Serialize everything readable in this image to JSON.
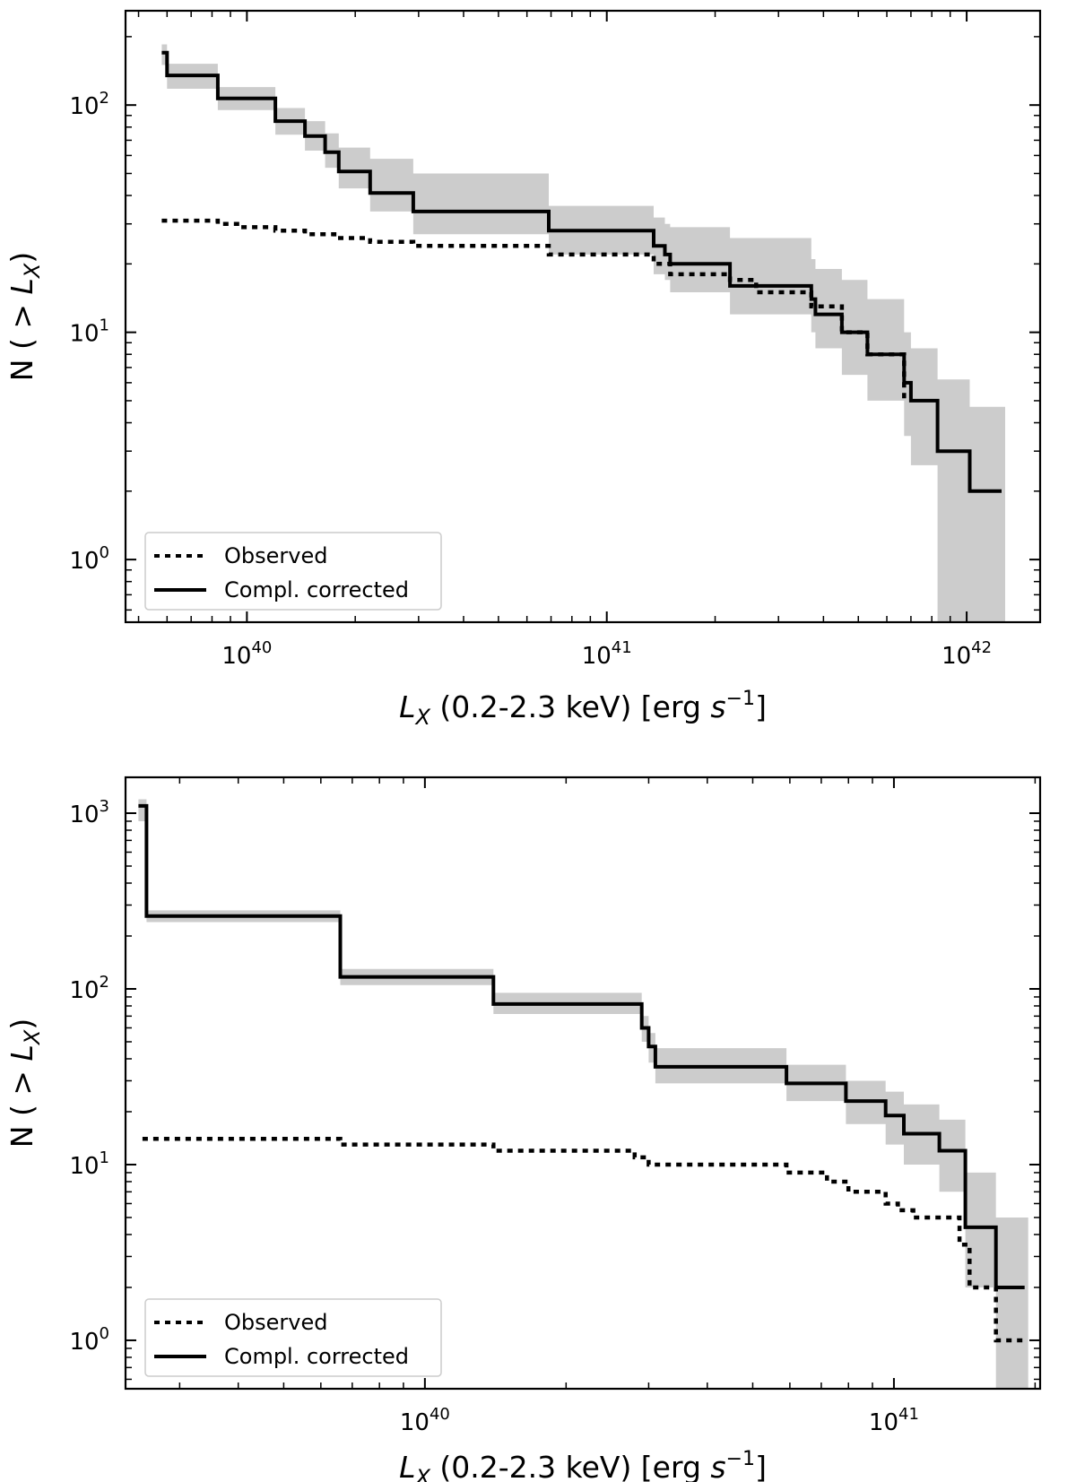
{
  "chart_data": [
    {
      "type": "line",
      "xscale": "log",
      "yscale": "log",
      "xlim": [
        4.6e+39,
        1.6e+42
      ],
      "ylim": [
        0.53,
        260
      ],
      "xlabel": {
        "main": "L",
        "sub": "X",
        "rest": " (0.2-2.3 keV) [erg ",
        "s": "s",
        "sup": "−1",
        "close": "]"
      },
      "ylabel": {
        "main": "N ( > ",
        "L": "L",
        "sub": "X",
        "close": ")"
      },
      "x_tick_labels": [
        {
          "value": 1e+40,
          "base": "10",
          "exp": "40"
        },
        {
          "value": 1e+41,
          "base": "10",
          "exp": "41"
        },
        {
          "value": 1e+42,
          "base": "10",
          "exp": "42"
        }
      ],
      "y_tick_labels": [
        {
          "value": 1,
          "base": "10",
          "exp": "0"
        },
        {
          "value": 10,
          "base": "10",
          "exp": "1"
        },
        {
          "value": 100,
          "base": "10",
          "exp": "2"
        }
      ],
      "legend": {
        "position": "lower-left",
        "entries": [
          "Observed",
          "Compl. corrected"
        ]
      },
      "grid": false,
      "series": [
        {
          "name": "Observed",
          "style": "dotted",
          "x": [
            5.8e+39,
            8.3e+39,
            9.6e+39,
            1.2e+40,
            1.45e+40,
            1.75e+40,
            2.2e+40,
            2.9e+40,
            6.9e+40,
            1.35e+41,
            1.5e+41,
            2.2e+41,
            2.6e+41,
            3.7e+41,
            4.5e+41,
            5.3e+41,
            6.7e+41
          ],
          "y": [
            31,
            30,
            29,
            28,
            27,
            26,
            25,
            24,
            22,
            20,
            18,
            17,
            15,
            13,
            10,
            8,
            5
          ]
        },
        {
          "name": "Compl. corrected",
          "style": "solid",
          "x": [
            5.8e+39,
            6e+39,
            8.3e+39,
            1.2e+40,
            1.45e+40,
            1.65e+40,
            1.8e+40,
            2.2e+40,
            2.9e+40,
            6.9e+40,
            1.35e+41,
            1.45e+41,
            1.5e+41,
            2.2e+41,
            3.7e+41,
            3.8e+41,
            4.5e+41,
            5.3e+41,
            6.7e+41,
            7e+41,
            8.3e+41,
            1.02e+42,
            1.25e+42
          ],
          "y": [
            170,
            135,
            107,
            85,
            73,
            62,
            51,
            41,
            34,
            28,
            24,
            22,
            20,
            16,
            14,
            12,
            10,
            8,
            6,
            5,
            3,
            2,
            2
          ]
        }
      ],
      "band": {
        "x": [
          5.8e+39,
          6e+39,
          8.3e+39,
          1.2e+40,
          1.45e+40,
          1.65e+40,
          1.8e+40,
          2.2e+40,
          2.9e+40,
          6.9e+40,
          1.35e+41,
          1.45e+41,
          1.5e+41,
          2.2e+41,
          3.7e+41,
          3.8e+41,
          4.5e+41,
          5.3e+41,
          6.7e+41,
          7e+41,
          8.3e+41,
          1.02e+42,
          1.25e+42
        ],
        "lower": [
          150,
          118,
          95,
          74,
          63,
          53,
          43,
          34,
          27,
          22,
          18,
          17,
          15,
          12,
          10,
          8.5,
          6.5,
          5,
          3.5,
          2.6,
          0.5,
          0.5,
          0.5
        ],
        "upper": [
          185,
          152,
          120,
          97,
          85,
          75,
          65,
          58,
          50,
          36,
          32,
          30,
          29,
          26,
          21,
          19,
          17,
          14,
          10,
          8.5,
          6.2,
          4.7,
          4.7
        ]
      }
    },
    {
      "type": "line",
      "xscale": "log",
      "yscale": "log",
      "xlim": [
        2.3e+39,
        2.05e+41
      ],
      "ylim": [
        0.53,
        1600
      ],
      "xlabel": {
        "main": "L",
        "sub": "X",
        "rest": " (0.2-2.3 keV) [erg ",
        "s": "s",
        "sup": "−1",
        "close": "]"
      },
      "ylabel": {
        "main": "N ( > ",
        "L": "L",
        "sub": "X",
        "close": ")"
      },
      "x_tick_labels": [
        {
          "value": 1e+40,
          "base": "10",
          "exp": "40"
        },
        {
          "value": 1e+41,
          "base": "10",
          "exp": "41"
        }
      ],
      "y_tick_labels": [
        {
          "value": 1,
          "base": "10",
          "exp": "0"
        },
        {
          "value": 10,
          "base": "10",
          "exp": "1"
        },
        {
          "value": 100,
          "base": "10",
          "exp": "2"
        },
        {
          "value": 1000,
          "base": "10",
          "exp": "3"
        }
      ],
      "legend": {
        "position": "lower-left",
        "entries": [
          "Observed",
          "Compl. corrected"
        ]
      },
      "grid": false,
      "series": [
        {
          "name": "Observed",
          "style": "dotted",
          "x": [
            2.5e+39,
            6.6e+39,
            1.4e+40,
            2.8e+40,
            3e+40,
            5.9e+40,
            7.2e+40,
            8e+40,
            9.6e+40,
            1.02e+41,
            1.1e+41,
            1.25e+41,
            1.38e+41,
            1.45e+41,
            1.65e+41,
            1.9e+41
          ],
          "y": [
            14,
            13,
            12,
            11,
            10,
            9,
            8,
            7,
            6,
            5.5,
            5,
            5,
            3.5,
            2,
            1,
            1
          ]
        },
        {
          "name": "Compl. corrected",
          "style": "solid",
          "x": [
            2.45e+39,
            2.55e+39,
            6.6e+39,
            1.4e+40,
            2.9e+40,
            3e+40,
            3.1e+40,
            5.9e+40,
            7.9e+40,
            9.6e+40,
            1.05e+41,
            1.25e+41,
            1.42e+41,
            1.65e+41,
            1.9e+41
          ],
          "y": [
            1100,
            260,
            117,
            82,
            60,
            47,
            36,
            29,
            23,
            19,
            15,
            12,
            4.4,
            2,
            2
          ]
        }
      ],
      "band": {
        "x": [
          2.45e+39,
          2.55e+39,
          6.6e+39,
          1.4e+40,
          2.9e+40,
          3e+40,
          3.1e+40,
          5.9e+40,
          7.9e+40,
          9.6e+40,
          1.05e+41,
          1.25e+41,
          1.42e+41,
          1.65e+41,
          1.9e+41
        ],
        "lower": [
          900,
          240,
          105,
          72,
          50,
          38,
          29,
          23,
          17,
          13,
          10,
          7,
          2,
          0.5,
          0.5
        ],
        "upper": [
          1200,
          280,
          130,
          95,
          70,
          56,
          46,
          37,
          30,
          26,
          22,
          18,
          9,
          5,
          5
        ]
      }
    }
  ]
}
